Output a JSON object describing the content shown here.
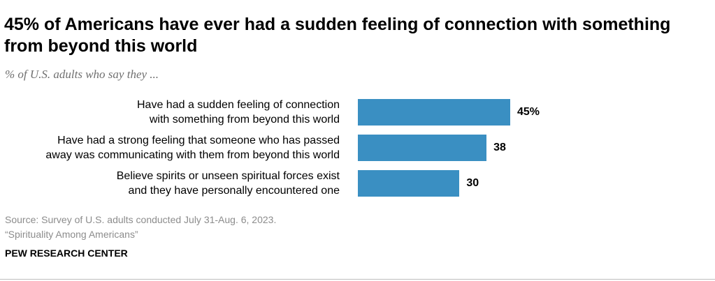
{
  "header": {
    "title": "45% of Americans have ever had a sudden feeling of connection with something from beyond this world",
    "subtitle": "% of U.S. adults who say they ..."
  },
  "chart_data": {
    "type": "bar",
    "orientation": "horizontal",
    "title": "45% of Americans have ever had a sudden feeling of connection with something from beyond this world",
    "subtitle": "% of U.S. adults who say they ...",
    "categories": [
      [
        "Have had a sudden feeling of connection",
        "with something from beyond this world"
      ],
      [
        "Have had a strong feeling that someone who has passed",
        "away was communicating with them from beyond this world"
      ],
      [
        "Believe spirits or unseen spiritual forces exist",
        "and they have personally encountered one"
      ]
    ],
    "values": [
      45,
      38,
      30
    ],
    "value_labels": [
      "45%",
      "38",
      "30"
    ],
    "xlim": [
      0,
      100
    ],
    "grid": false,
    "legend": "none",
    "bar_color": "#3a8fc2"
  },
  "footer": {
    "source_line1": "Source: Survey of U.S. adults conducted July 31-Aug. 6, 2023.",
    "source_line2": "“Spirituality Among Americans”",
    "brand": "PEW RESEARCH CENTER"
  },
  "colors": {
    "bar": "#3a8fc2",
    "subtitle": "#6f6f6f",
    "source": "#8c8c8c"
  }
}
